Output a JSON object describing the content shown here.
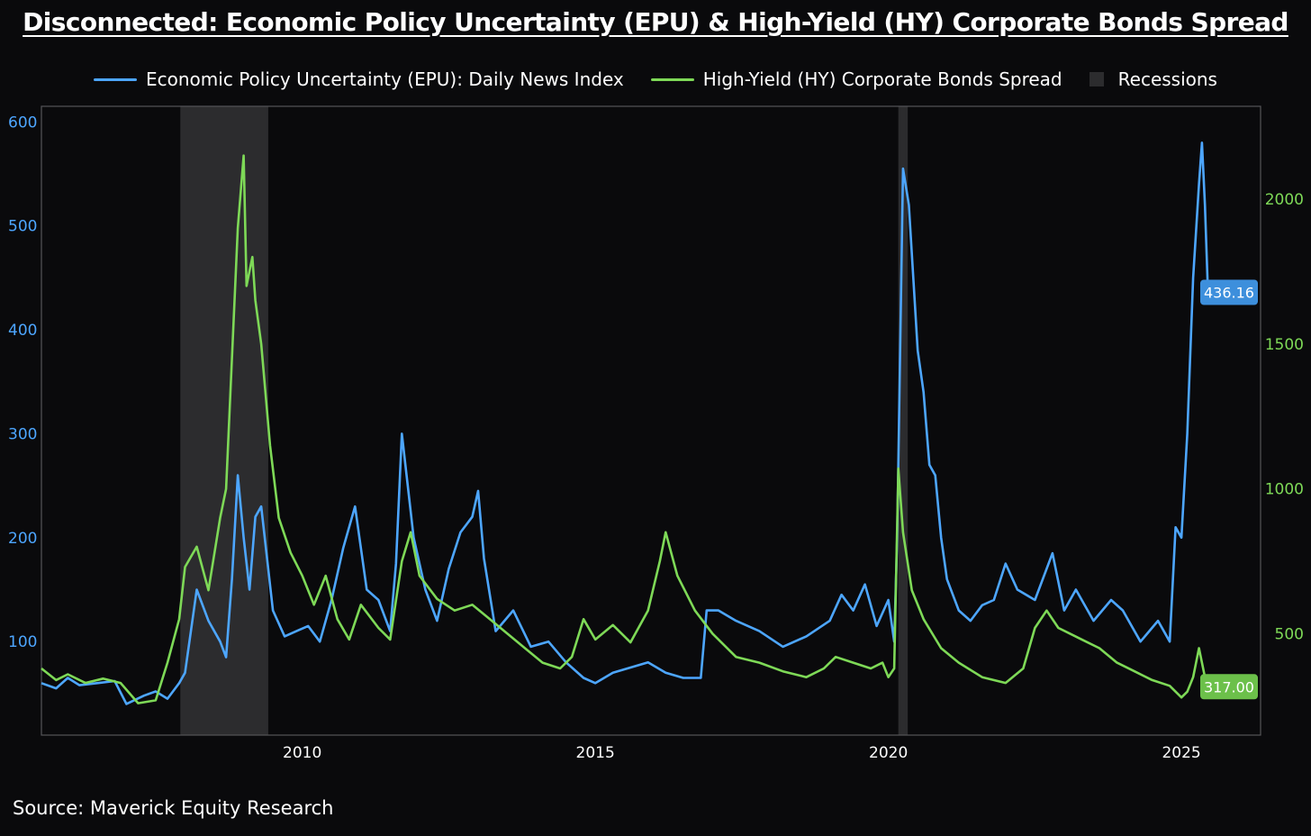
{
  "title": "Disconnected: Economic Policy Uncertainty (EPU) & High-Yield (HY) Corporate Bonds Spread",
  "source": "Source: Maverick Equity Research",
  "colors": {
    "epu": "#4da6ff",
    "hy": "#7ed957",
    "recession": "#2c2c2e",
    "background": "#0a0a0c",
    "epu_label_bg": "#3d8fdc",
    "hy_label_bg": "#6cc04a"
  },
  "legend": [
    {
      "label": "Economic Policy Uncertainty (EPU): Daily News Index",
      "series": "epu",
      "icon": "line"
    },
    {
      "label": "High-Yield (HY) Corporate Bonds Spread",
      "series": "hy",
      "icon": "line"
    },
    {
      "label": "Recessions",
      "series": "recession",
      "icon": "box"
    }
  ],
  "chart_data": {
    "type": "line",
    "title": "Disconnected: Economic Policy Uncertainty (EPU) & High-Yield (HY) Corporate Bonds Spread",
    "xlabel": "",
    "x_ticks": [
      "2010",
      "2015",
      "2020",
      "2025"
    ],
    "xlim": [
      2005.55,
      2026.35
    ],
    "y_left": {
      "ticks": [
        100,
        200,
        300,
        400,
        500,
        600
      ],
      "lim": [
        10,
        615
      ],
      "color": "#4da6ff"
    },
    "y_right": {
      "ticks": [
        500,
        1000,
        1500,
        2000
      ],
      "lim": [
        150,
        2320
      ],
      "color": "#7ed957"
    },
    "grid": false,
    "legend_position": "top-center",
    "recessions": [
      [
        2007.92,
        2009.42
      ],
      [
        2020.17,
        2020.33
      ]
    ],
    "series": [
      {
        "name": "Economic Policy Uncertainty (EPU): Daily News Index",
        "axis": "left",
        "last_value_label": "436.16",
        "x": [
          2005.55,
          2005.8,
          2006.0,
          2006.2,
          2006.5,
          2006.8,
          2007.0,
          2007.3,
          2007.5,
          2007.7,
          2007.9,
          2008.0,
          2008.2,
          2008.4,
          2008.6,
          2008.7,
          2008.8,
          2008.9,
          2009.0,
          2009.1,
          2009.2,
          2009.3,
          2009.5,
          2009.7,
          2009.9,
          2010.1,
          2010.3,
          2010.5,
          2010.7,
          2010.9,
          2011.1,
          2011.3,
          2011.5,
          2011.6,
          2011.7,
          2011.9,
          2012.1,
          2012.3,
          2012.5,
          2012.7,
          2012.9,
          2013.0,
          2013.1,
          2013.3,
          2013.6,
          2013.9,
          2014.2,
          2014.5,
          2014.8,
          2015.0,
          2015.3,
          2015.6,
          2015.9,
          2016.2,
          2016.5,
          2016.8,
          2016.9,
          2017.1,
          2017.4,
          2017.8,
          2018.2,
          2018.6,
          2019.0,
          2019.2,
          2019.4,
          2019.6,
          2019.8,
          2020.0,
          2020.1,
          2020.15,
          2020.25,
          2020.35,
          2020.5,
          2020.6,
          2020.7,
          2020.8,
          2020.9,
          2021.0,
          2021.2,
          2021.4,
          2021.6,
          2021.8,
          2022.0,
          2022.2,
          2022.5,
          2022.8,
          2023.0,
          2023.2,
          2023.5,
          2023.8,
          2024.0,
          2024.3,
          2024.6,
          2024.8,
          2024.9,
          2025.0,
          2025.1,
          2025.2,
          2025.3,
          2025.35,
          2025.4,
          2025.45,
          2025.5
        ],
        "values": [
          60,
          55,
          65,
          58,
          60,
          62,
          40,
          48,
          52,
          45,
          60,
          70,
          150,
          120,
          100,
          85,
          160,
          260,
          200,
          150,
          220,
          230,
          130,
          105,
          110,
          115,
          100,
          140,
          190,
          230,
          150,
          140,
          110,
          175,
          300,
          200,
          150,
          120,
          170,
          205,
          220,
          245,
          180,
          110,
          130,
          95,
          100,
          80,
          65,
          60,
          70,
          75,
          80,
          70,
          65,
          65,
          130,
          130,
          120,
          110,
          95,
          105,
          120,
          145,
          130,
          155,
          115,
          140,
          100,
          200,
          555,
          520,
          380,
          340,
          270,
          260,
          200,
          160,
          130,
          120,
          135,
          140,
          175,
          150,
          140,
          185,
          130,
          150,
          120,
          140,
          130,
          100,
          120,
          100,
          210,
          200,
          300,
          450,
          540,
          580,
          520,
          440,
          436
        ]
      },
      {
        "name": "High-Yield (HY) Corporate Bonds Spread",
        "axis": "right",
        "last_value_label": "317.00",
        "x": [
          2005.55,
          2005.8,
          2006.0,
          2006.3,
          2006.6,
          2006.9,
          2007.2,
          2007.5,
          2007.7,
          2007.9,
          2008.0,
          2008.2,
          2008.4,
          2008.6,
          2008.7,
          2008.8,
          2008.9,
          2009.0,
          2009.05,
          2009.15,
          2009.2,
          2009.3,
          2009.45,
          2009.6,
          2009.8,
          2010.0,
          2010.2,
          2010.4,
          2010.6,
          2010.8,
          2011.0,
          2011.3,
          2011.5,
          2011.7,
          2011.85,
          2012.0,
          2012.3,
          2012.6,
          2012.9,
          2013.2,
          2013.5,
          2013.8,
          2014.1,
          2014.4,
          2014.6,
          2014.8,
          2015.0,
          2015.3,
          2015.6,
          2015.9,
          2016.1,
          2016.2,
          2016.4,
          2016.7,
          2017.0,
          2017.4,
          2017.8,
          2018.2,
          2018.6,
          2018.9,
          2019.1,
          2019.4,
          2019.7,
          2019.9,
          2020.0,
          2020.1,
          2020.17,
          2020.25,
          2020.4,
          2020.6,
          2020.9,
          2021.2,
          2021.6,
          2022.0,
          2022.3,
          2022.5,
          2022.7,
          2022.9,
          2023.1,
          2023.3,
          2023.6,
          2023.9,
          2024.2,
          2024.5,
          2024.8,
          2025.0,
          2025.1,
          2025.2,
          2025.3,
          2025.4,
          2025.5
        ],
        "values": [
          380,
          340,
          360,
          330,
          345,
          330,
          260,
          270,
          400,
          550,
          730,
          800,
          650,
          900,
          1000,
          1450,
          1900,
          2150,
          1700,
          1800,
          1650,
          1500,
          1150,
          900,
          780,
          700,
          600,
          700,
          550,
          480,
          600,
          520,
          480,
          750,
          850,
          700,
          620,
          580,
          600,
          550,
          500,
          450,
          400,
          380,
          420,
          550,
          480,
          530,
          470,
          580,
          750,
          850,
          700,
          580,
          500,
          420,
          400,
          370,
          350,
          380,
          420,
          400,
          380,
          400,
          350,
          380,
          1070,
          850,
          650,
          550,
          450,
          400,
          350,
          330,
          380,
          520,
          580,
          520,
          500,
          480,
          450,
          400,
          370,
          340,
          320,
          280,
          300,
          350,
          450,
          350,
          317
        ]
      }
    ]
  }
}
